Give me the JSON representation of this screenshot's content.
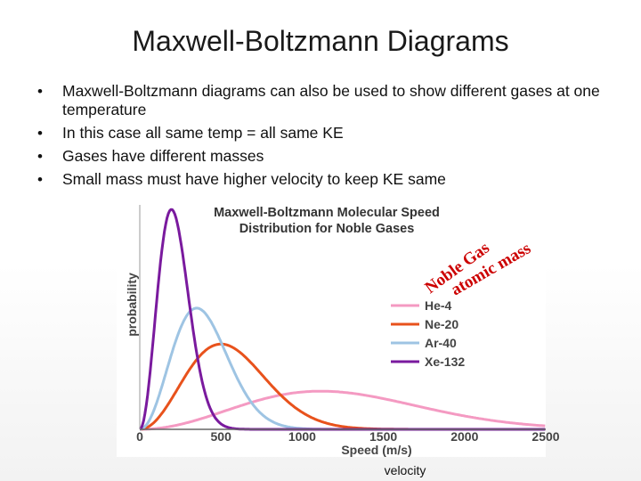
{
  "slide": {
    "title": "Maxwell-Boltzmann Diagrams",
    "bullets": [
      "Maxwell-Boltzmann diagrams can also be used to show different gases at one temperature",
      "In this case all  same temp  = all same KE",
      "Gases have different masses",
      "Small mass must have higher velocity to keep KE same"
    ],
    "caption": "velocity"
  },
  "annotations": {
    "line1": "Noble Gas",
    "line2": "atomic mass",
    "color": "#cc0000"
  },
  "chart_data": {
    "type": "line",
    "title_line1": "Maxwell-Boltzmann Molecular Speed",
    "title_line2": "Distribution for Noble Gases",
    "xlabel": "Speed (m/s)",
    "ylabel": "probability",
    "xlim": [
      0,
      2500
    ],
    "ylim": [
      0,
      1
    ],
    "xticks": [
      0,
      500,
      1000,
      1500,
      2000,
      2500
    ],
    "grid": false,
    "legend_position": "right",
    "series": [
      {
        "name": "He-4",
        "color": "#f49ac2",
        "peak_speed": 1115,
        "peak_value": 0.17
      },
      {
        "name": "Ne-20",
        "color": "#e8521c",
        "peak_speed": 500,
        "peak_value": 0.38
      },
      {
        "name": "Ar-40",
        "color": "#9ec4e3",
        "peak_speed": 350,
        "peak_value": 0.54
      },
      {
        "name": "Xe-132",
        "color": "#7a1a9e",
        "peak_speed": 195,
        "peak_value": 0.98
      }
    ]
  }
}
